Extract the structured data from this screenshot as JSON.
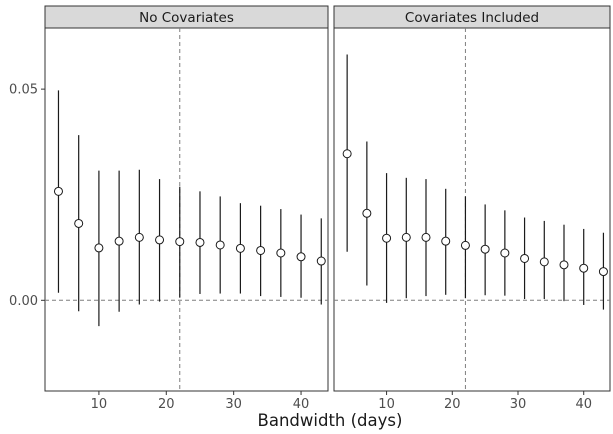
{
  "chart_data": {
    "type": "scatter",
    "subtype": "point-range (estimate with 95% interval) faceted by panel",
    "xlabel": "Bandwidth (days)",
    "ylabel": "",
    "xlim": [
      2,
      44
    ],
    "ylim": [
      -0.021,
      0.064
    ],
    "x_ticks": [
      10,
      20,
      30,
      40
    ],
    "y_ticks": [
      0.0,
      0.05
    ],
    "y_tick_labels": [
      "0.00",
      "0.05"
    ],
    "grid": false,
    "reference_lines": {
      "horizontal_dashed_y": 0.0,
      "vertical_dashed_x": 22
    },
    "panels": [
      {
        "title": "No Covariates",
        "x": [
          4,
          7,
          10,
          13,
          16,
          19,
          22,
          25,
          28,
          31,
          34,
          37,
          40,
          43
        ],
        "estimate": [
          0.0258,
          0.0182,
          0.0124,
          0.014,
          0.0149,
          0.0143,
          0.0139,
          0.0137,
          0.0131,
          0.0123,
          0.0118,
          0.0112,
          0.0103,
          0.0093
        ],
        "lower": [
          0.0018,
          -0.0026,
          -0.0061,
          -0.0027,
          -0.001,
          -0.0003,
          0.0007,
          0.0015,
          0.0016,
          0.0016,
          0.001,
          0.0008,
          0.0006,
          -0.001
        ],
        "upper": [
          0.0497,
          0.0391,
          0.0307,
          0.0307,
          0.0309,
          0.0287,
          0.0269,
          0.0258,
          0.0246,
          0.023,
          0.0224,
          0.0216,
          0.0203,
          0.0194
        ]
      },
      {
        "title": "Covariates Included",
        "x": [
          4,
          7,
          10,
          13,
          16,
          19,
          22,
          25,
          28,
          31,
          34,
          37,
          40,
          43
        ],
        "estimate": [
          0.0347,
          0.0206,
          0.0147,
          0.0149,
          0.0149,
          0.014,
          0.013,
          0.0121,
          0.0112,
          0.0099,
          0.0091,
          0.0084,
          0.0076,
          0.0068
        ],
        "lower": [
          0.0115,
          0.0035,
          -0.0006,
          0.0005,
          0.001,
          0.0013,
          0.0005,
          0.0012,
          0.0011,
          0.0003,
          0.0003,
          -0.0002,
          -0.0011,
          -0.0022
        ],
        "upper": [
          0.0582,
          0.0376,
          0.0301,
          0.029,
          0.0287,
          0.0264,
          0.0246,
          0.0227,
          0.0213,
          0.0196,
          0.0188,
          0.0179,
          0.0169,
          0.016
        ]
      }
    ]
  },
  "colors": {
    "panel_border": "#333333",
    "strip_fill": "#d9d9d9",
    "interval_line": "#1a1a1a",
    "point_fill": "#ffffff",
    "point_stroke": "#1a1a1a",
    "reference_line": "#7f7f7f",
    "tick_text": "#4d4d4d"
  }
}
